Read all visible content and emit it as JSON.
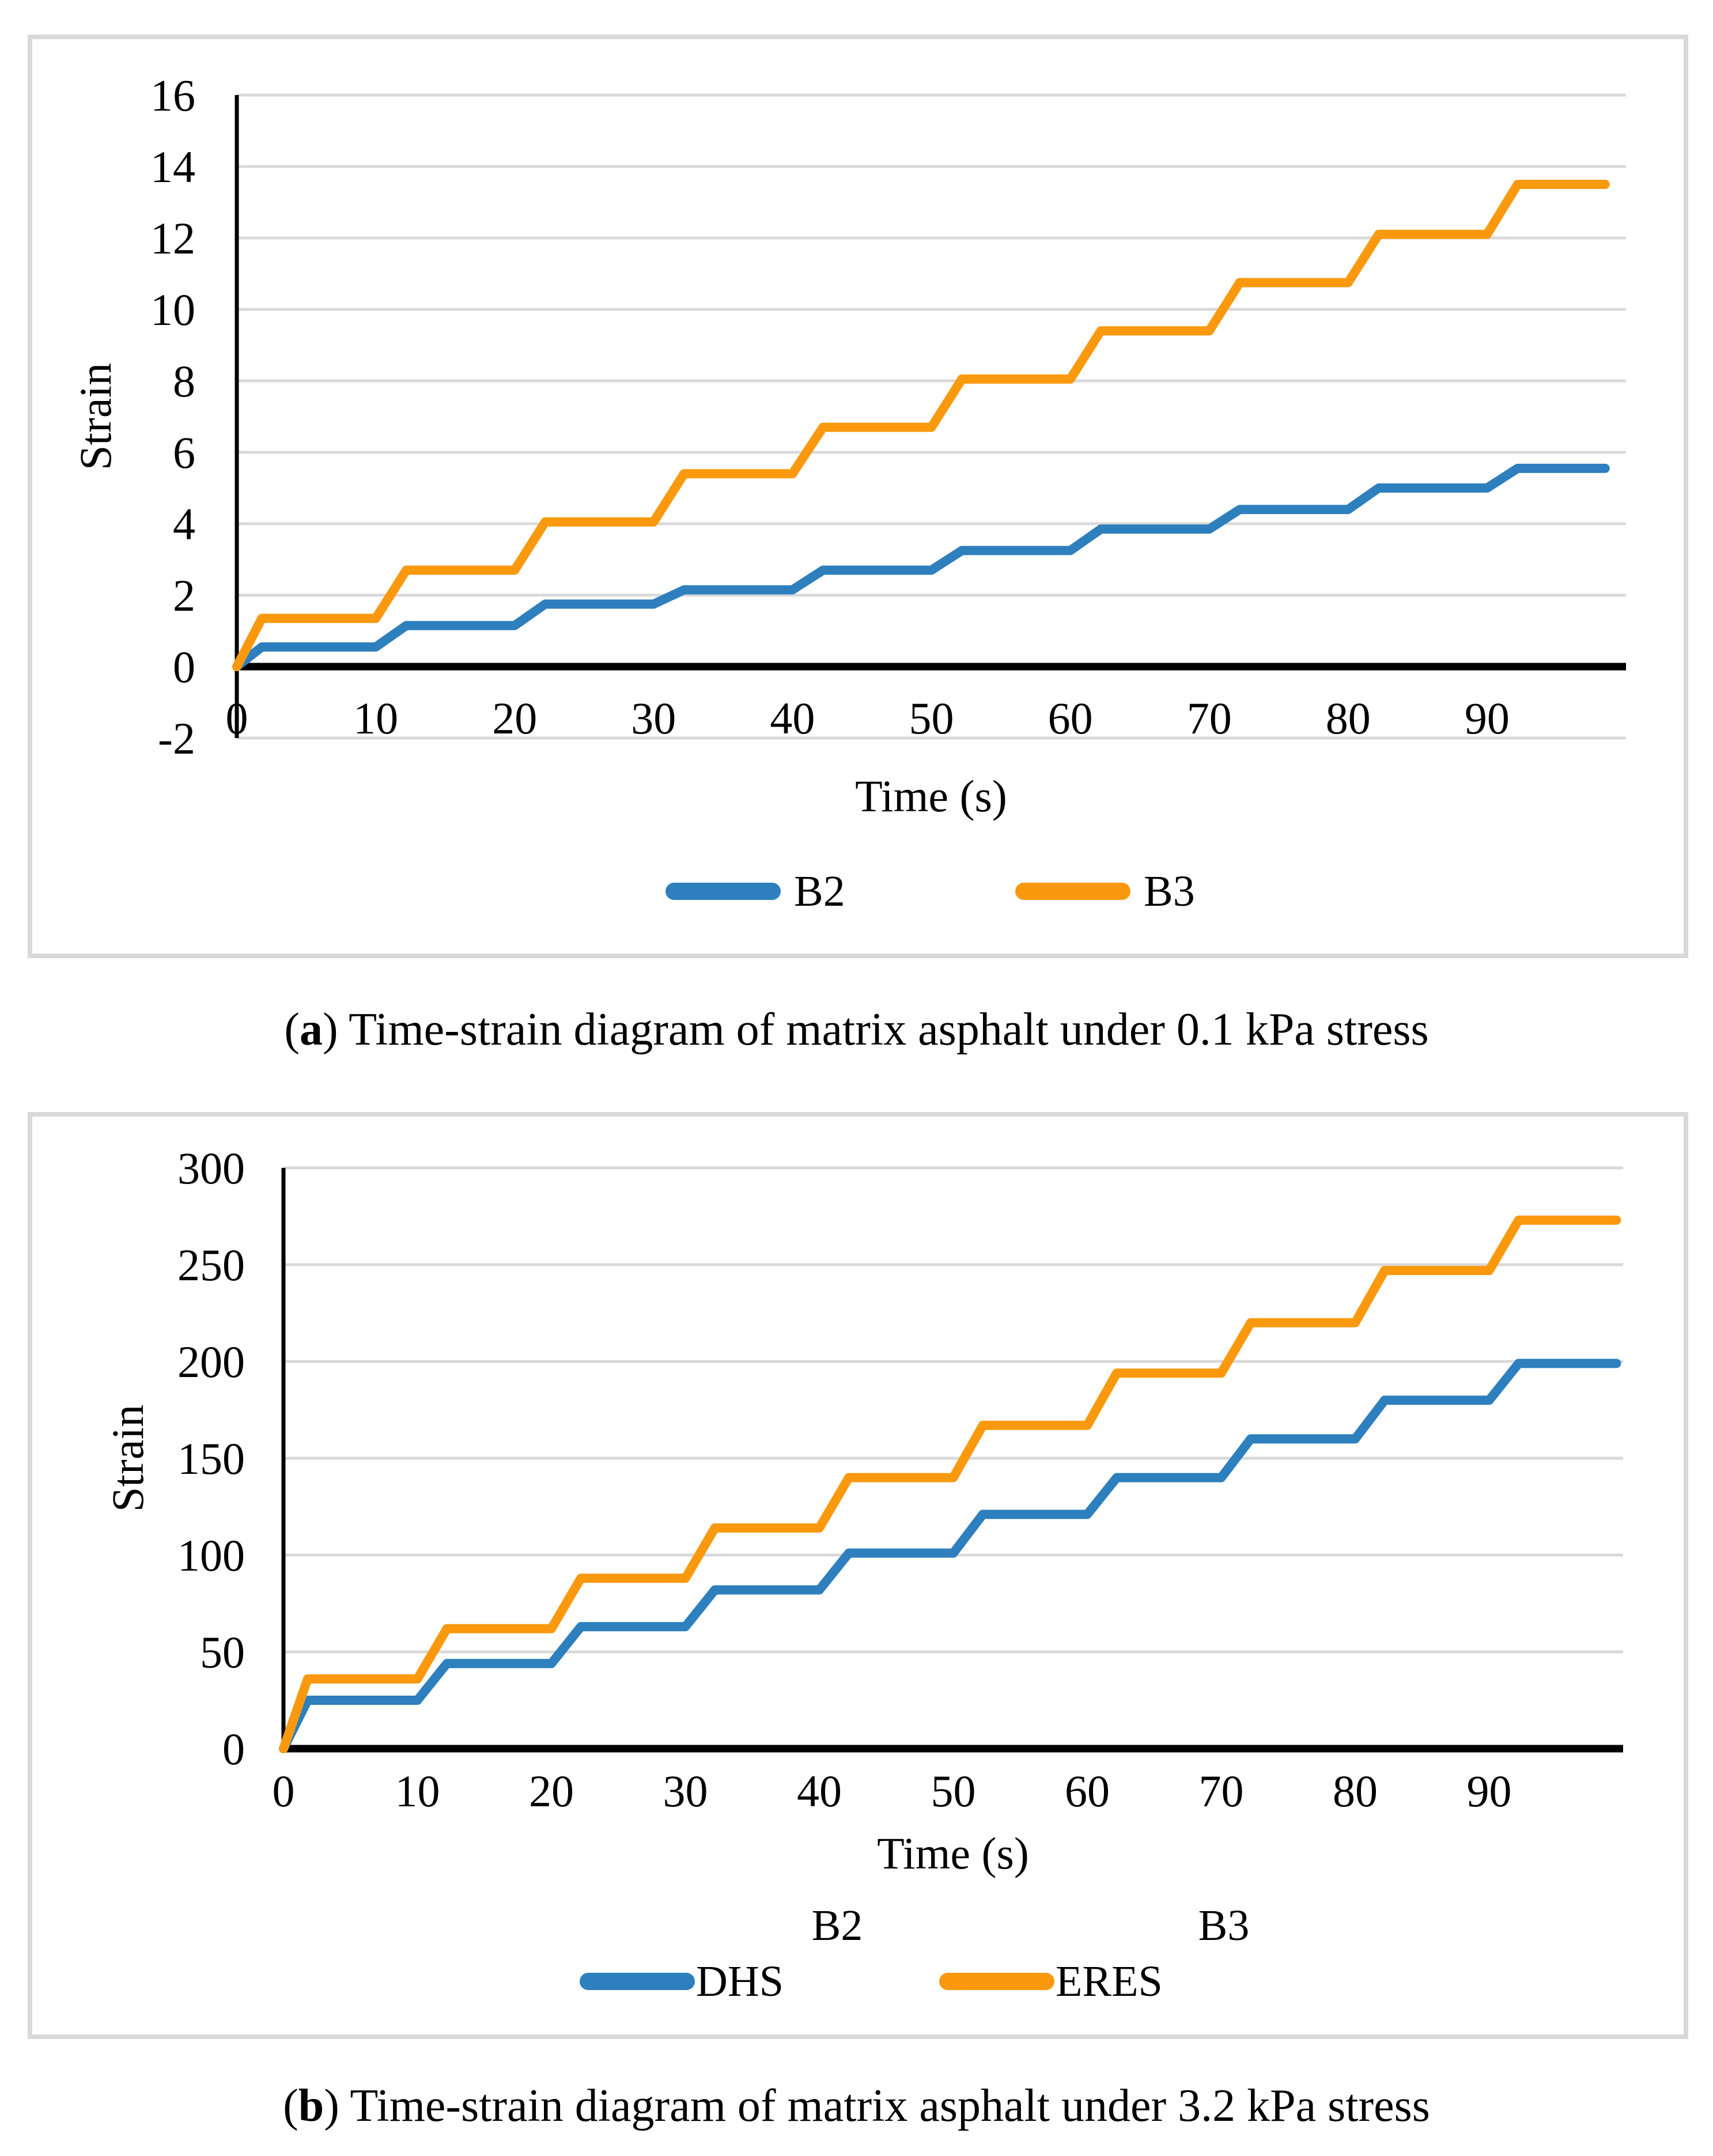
{
  "captions": {
    "a": {
      "pre": "(",
      "letter": "a",
      "rest": ") Time-strain diagram of matrix asphalt under 0.1 kPa stress"
    },
    "b": {
      "pre": "(",
      "letter": "b",
      "rest": ") Time-strain diagram of matrix asphalt under 3.2 kPa stress"
    }
  },
  "colors": {
    "blue": "#2E7FBD",
    "orange": "#FA990E",
    "grid": "#D9D9D9",
    "axis": "#000000",
    "panel_border": "#D9D9D9"
  },
  "chart_data": [
    {
      "type": "line",
      "panel": "a",
      "title": "",
      "xlabel": "Time (s)",
      "ylabel": "Strain",
      "xlim": [
        0,
        100
      ],
      "ylim": [
        -2,
        16
      ],
      "xticks": [
        0,
        10,
        20,
        30,
        40,
        50,
        60,
        70,
        80,
        90
      ],
      "yticks": [
        -2,
        0,
        2,
        4,
        6,
        8,
        10,
        12,
        14,
        16
      ],
      "grid": true,
      "legend_position": "bottom",
      "step_times": [
        0,
        10,
        20,
        30,
        40,
        50,
        60,
        70,
        80,
        90
      ],
      "series": [
        {
          "name": "B2",
          "color_key": "blue",
          "plateaus": [
            0.55,
            1.15,
            1.75,
            2.15,
            2.7,
            3.25,
            3.85,
            4.4,
            5.0,
            5.55
          ]
        },
        {
          "name": "B3",
          "color_key": "orange",
          "plateaus": [
            1.35,
            2.7,
            4.05,
            5.4,
            6.7,
            8.05,
            9.4,
            10.75,
            12.1,
            13.5
          ]
        }
      ]
    },
    {
      "type": "line",
      "panel": "b",
      "title": "",
      "xlabel": "Time (s)",
      "ylabel": "Strain",
      "xlim": [
        0,
        100
      ],
      "ylim": [
        0,
        300
      ],
      "xticks": [
        0,
        10,
        20,
        30,
        40,
        50,
        60,
        70,
        80,
        90
      ],
      "yticks": [
        0,
        50,
        100,
        150,
        200,
        250,
        300
      ],
      "grid": true,
      "legend_position": "bottom",
      "legend_headers": [
        "B2",
        "B3"
      ],
      "step_times": [
        0,
        10,
        20,
        30,
        40,
        50,
        60,
        70,
        80,
        90
      ],
      "series": [
        {
          "name": "DHS",
          "color_key": "blue",
          "plateaus": [
            25,
            44,
            63,
            82,
            101,
            121,
            140,
            160,
            180,
            199
          ]
        },
        {
          "name": "ERES",
          "color_key": "orange",
          "plateaus": [
            36,
            62,
            88,
            114,
            140,
            167,
            194,
            220,
            247,
            273
          ]
        }
      ]
    }
  ]
}
